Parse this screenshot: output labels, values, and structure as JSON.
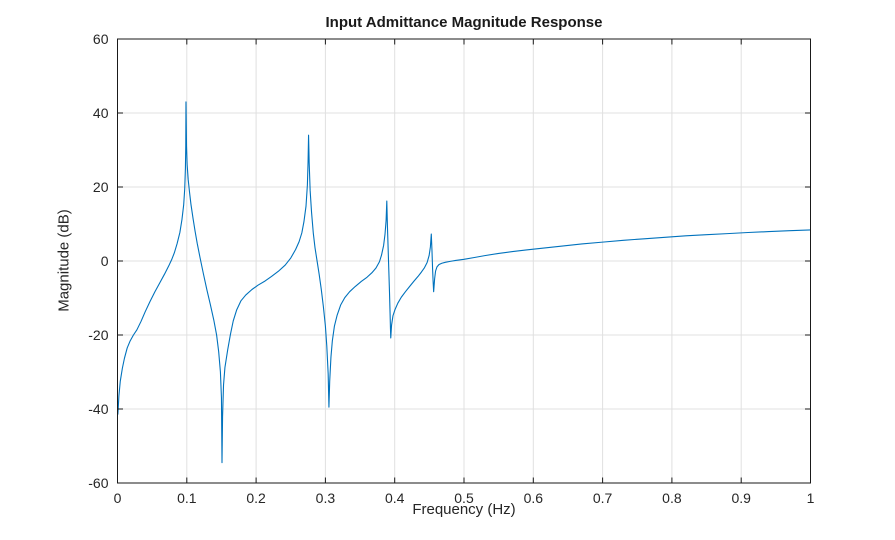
{
  "figure": {
    "background": "#ffffff"
  },
  "chart_data": {
    "type": "line",
    "title": "Input Admittance Magnitude Response",
    "xlabel": "Frequency (Hz)",
    "ylabel": "Magnitude (dB)",
    "xlim": [
      0,
      1
    ],
    "ylim": [
      -60,
      60
    ],
    "x_ticks": [
      0,
      0.1,
      0.2,
      0.3,
      0.4,
      0.5,
      0.6,
      0.7,
      0.8,
      0.9,
      1
    ],
    "x_tick_labels": [
      "0",
      "0.1",
      "0.2",
      "0.3",
      "0.4",
      "0.5",
      "0.6",
      "0.7",
      "0.8",
      "0.9",
      "1"
    ],
    "y_ticks": [
      -60,
      -40,
      -20,
      0,
      20,
      40,
      60
    ],
    "y_tick_labels": [
      "-60",
      "-40",
      "-20",
      "0",
      "20",
      "40",
      "60"
    ],
    "grid": true,
    "legend": null,
    "colors": {
      "line": "#0072BD",
      "grid": "#e0e0e0",
      "axis": "#1a1a1a",
      "text": "#262626"
    },
    "annotations": {
      "peaks": [
        {
          "f": 0.099,
          "dB": 43
        },
        {
          "f": 0.276,
          "dB": 34
        },
        {
          "f": 0.389,
          "dB": 16.2
        },
        {
          "f": 0.453,
          "dB": 7.3
        }
      ],
      "dips": [
        {
          "f": 0.151,
          "dB": -54.5
        },
        {
          "f": 0.305,
          "dB": -39.5
        },
        {
          "f": 0.394,
          "dB": -20.8
        },
        {
          "f": 0.456,
          "dB": -8.3
        }
      ]
    },
    "series": [
      {
        "name": "input-admittance-magnitude",
        "points": [
          [
            0.0005,
            -41.5
          ],
          [
            0.002,
            -36.5
          ],
          [
            0.004,
            -32.5
          ],
          [
            0.007,
            -29
          ],
          [
            0.01,
            -26.3
          ],
          [
            0.014,
            -23.5
          ],
          [
            0.018,
            -21.7
          ],
          [
            0.023,
            -20.0
          ],
          [
            0.028,
            -18.6
          ],
          [
            0.034,
            -16.3
          ],
          [
            0.04,
            -13.7
          ],
          [
            0.047,
            -10.9
          ],
          [
            0.054,
            -8.3
          ],
          [
            0.061,
            -5.9
          ],
          [
            0.068,
            -3.5
          ],
          [
            0.074,
            -1.3
          ],
          [
            0.078,
            0.3
          ],
          [
            0.082,
            2.2
          ],
          [
            0.086,
            4.7
          ],
          [
            0.09,
            7.7
          ],
          [
            0.093,
            11.2
          ],
          [
            0.0955,
            15.2
          ],
          [
            0.097,
            19.5
          ],
          [
            0.098,
            25
          ],
          [
            0.0985,
            31
          ],
          [
            0.0988,
            43
          ],
          [
            0.0996,
            31
          ],
          [
            0.1005,
            26
          ],
          [
            0.102,
            22
          ],
          [
            0.104,
            18.5
          ],
          [
            0.106,
            15.3
          ],
          [
            0.109,
            11.5
          ],
          [
            0.112,
            8
          ],
          [
            0.115,
            4.8
          ],
          [
            0.119,
            1
          ],
          [
            0.124,
            -3.5
          ],
          [
            0.129,
            -7.8
          ],
          [
            0.134,
            -11.8
          ],
          [
            0.139,
            -16
          ],
          [
            0.143,
            -20
          ],
          [
            0.146,
            -24.5
          ],
          [
            0.1485,
            -30
          ],
          [
            0.15,
            -37
          ],
          [
            0.1508,
            -54.5
          ],
          [
            0.1516,
            -42
          ],
          [
            0.153,
            -33.5
          ],
          [
            0.155,
            -28.8
          ],
          [
            0.159,
            -24
          ],
          [
            0.163,
            -19.8
          ],
          [
            0.167,
            -16.2
          ],
          [
            0.172,
            -13.2
          ],
          [
            0.178,
            -10.8
          ],
          [
            0.185,
            -9.2
          ],
          [
            0.194,
            -7.7
          ],
          [
            0.203,
            -6.5
          ],
          [
            0.213,
            -5.4
          ],
          [
            0.222,
            -4.2
          ],
          [
            0.232,
            -2.8
          ],
          [
            0.242,
            -1.1
          ],
          [
            0.25,
            0.8
          ],
          [
            0.257,
            3.1
          ],
          [
            0.262,
            5.2
          ],
          [
            0.266,
            7.6
          ],
          [
            0.269,
            10.6
          ],
          [
            0.272,
            14.8
          ],
          [
            0.274,
            20.5
          ],
          [
            0.275,
            27
          ],
          [
            0.2757,
            34
          ],
          [
            0.2766,
            26.5
          ],
          [
            0.278,
            19
          ],
          [
            0.28,
            13.2
          ],
          [
            0.2825,
            7.6
          ],
          [
            0.285,
            3.6
          ],
          [
            0.288,
            0
          ],
          [
            0.291,
            -3.6
          ],
          [
            0.294,
            -7.6
          ],
          [
            0.297,
            -12.2
          ],
          [
            0.3,
            -17.6
          ],
          [
            0.302,
            -23
          ],
          [
            0.304,
            -30.5
          ],
          [
            0.3051,
            -39.5
          ],
          [
            0.3062,
            -32.5
          ],
          [
            0.308,
            -26
          ],
          [
            0.31,
            -21.6
          ],
          [
            0.313,
            -17.6
          ],
          [
            0.317,
            -14.6
          ],
          [
            0.322,
            -11.9
          ],
          [
            0.328,
            -9.9
          ],
          [
            0.335,
            -8.3
          ],
          [
            0.343,
            -6.9
          ],
          [
            0.352,
            -5.5
          ],
          [
            0.36,
            -4.4
          ],
          [
            0.367,
            -3.2
          ],
          [
            0.373,
            -1.9
          ],
          [
            0.378,
            -0.2
          ],
          [
            0.381,
            1.6
          ],
          [
            0.384,
            4.2
          ],
          [
            0.386,
            7.2
          ],
          [
            0.3876,
            11
          ],
          [
            0.3886,
            16.2
          ],
          [
            0.3895,
            9.5
          ],
          [
            0.3905,
            3.5
          ],
          [
            0.3915,
            -2.5
          ],
          [
            0.3925,
            -8.5
          ],
          [
            0.3933,
            -14
          ],
          [
            0.3939,
            -18.3
          ],
          [
            0.3943,
            -20.8
          ],
          [
            0.3955,
            -17.3
          ],
          [
            0.3975,
            -14.8
          ],
          [
            0.4005,
            -13.1
          ],
          [
            0.4045,
            -11.4
          ],
          [
            0.4095,
            -9.8
          ],
          [
            0.4155,
            -8.3
          ],
          [
            0.4215,
            -6.9
          ],
          [
            0.4275,
            -5.5
          ],
          [
            0.4335,
            -4.2
          ],
          [
            0.4385,
            -3.0
          ],
          [
            0.443,
            -1.8
          ],
          [
            0.4468,
            -0.4
          ],
          [
            0.4497,
            1.5
          ],
          [
            0.4515,
            3.8
          ],
          [
            0.4528,
            7.3
          ],
          [
            0.4538,
            2.8
          ],
          [
            0.4546,
            -1.8
          ],
          [
            0.4554,
            -5.4
          ],
          [
            0.4562,
            -8.3
          ],
          [
            0.4576,
            -4.8
          ],
          [
            0.459,
            -2.7
          ],
          [
            0.461,
            -1.6
          ],
          [
            0.464,
            -0.95
          ],
          [
            0.468,
            -0.6
          ],
          [
            0.473,
            -0.35
          ],
          [
            0.48,
            -0.1
          ],
          [
            0.488,
            0.15
          ],
          [
            0.5,
            0.45
          ],
          [
            0.515,
            0.95
          ],
          [
            0.53,
            1.45
          ],
          [
            0.55,
            2.05
          ],
          [
            0.57,
            2.55
          ],
          [
            0.59,
            3.0
          ],
          [
            0.61,
            3.4
          ],
          [
            0.64,
            4.0
          ],
          [
            0.67,
            4.6
          ],
          [
            0.7,
            5.1
          ],
          [
            0.73,
            5.6
          ],
          [
            0.76,
            6.0
          ],
          [
            0.79,
            6.4
          ],
          [
            0.82,
            6.8
          ],
          [
            0.85,
            7.1
          ],
          [
            0.88,
            7.4
          ],
          [
            0.91,
            7.7
          ],
          [
            0.94,
            7.95
          ],
          [
            0.97,
            8.2
          ],
          [
            1.0,
            8.4
          ]
        ]
      }
    ]
  }
}
